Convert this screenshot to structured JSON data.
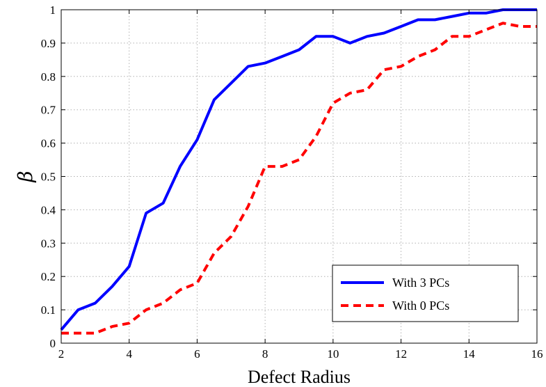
{
  "chart_data": {
    "type": "line",
    "xlabel": "Defect Radius",
    "ylabel": "β",
    "xlim": [
      2,
      16
    ],
    "ylim": [
      0,
      1
    ],
    "xticks": [
      "2",
      "4",
      "6",
      "8",
      "10",
      "12",
      "14",
      "16"
    ],
    "yticks": [
      "0",
      "0.1",
      "0.2",
      "0.3",
      "0.4",
      "0.5",
      "0.6",
      "0.7",
      "0.8",
      "0.9",
      "1"
    ],
    "grid": true,
    "legend_position": "bottom-right",
    "x": [
      2,
      2.5,
      3,
      3.5,
      4,
      4.5,
      5,
      5.5,
      6,
      6.5,
      7,
      7.5,
      8,
      8.5,
      9,
      9.5,
      10,
      10.5,
      11,
      11.5,
      12,
      12.5,
      13,
      13.5,
      14,
      14.5,
      15,
      15.5,
      16
    ],
    "series": [
      {
        "name": "With 3 PCs",
        "color": "#0000ff",
        "style": "solid",
        "values": [
          0.04,
          0.1,
          0.12,
          0.17,
          0.23,
          0.39,
          0.42,
          0.53,
          0.61,
          0.73,
          0.78,
          0.83,
          0.84,
          0.86,
          0.88,
          0.92,
          0.92,
          0.9,
          0.92,
          0.93,
          0.95,
          0.97,
          0.97,
          0.98,
          0.99,
          0.99,
          1.0,
          1.0,
          1.0
        ]
      },
      {
        "name": "With 0 PCs",
        "color": "#ff0000",
        "style": "dashed",
        "values": [
          0.03,
          0.03,
          0.03,
          0.05,
          0.06,
          0.1,
          0.12,
          0.16,
          0.18,
          0.27,
          0.32,
          0.41,
          0.53,
          0.53,
          0.55,
          0.62,
          0.72,
          0.75,
          0.76,
          0.82,
          0.83,
          0.86,
          0.88,
          0.92,
          0.92,
          0.94,
          0.96,
          0.95,
          0.95
        ]
      }
    ]
  }
}
